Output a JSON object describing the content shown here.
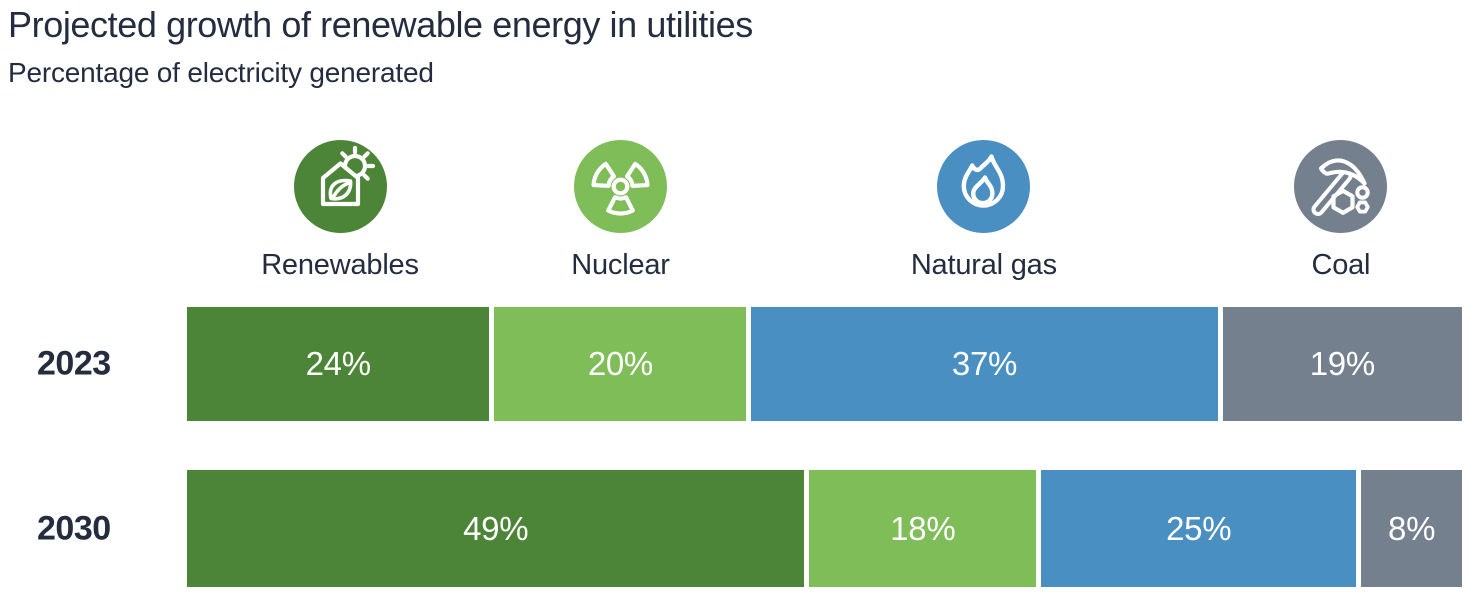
{
  "header": {
    "title": "Projected growth of renewable energy in utilities",
    "subtitle": "Percentage of electricity generated"
  },
  "legend": {
    "items": [
      {
        "label": "Renewables",
        "icon": "renewables-house-leaf-sun-icon",
        "color": "#4c8537"
      },
      {
        "label": "Nuclear",
        "icon": "nuclear-radiation-icon",
        "color": "#7fbd59"
      },
      {
        "label": "Natural gas",
        "icon": "natural-gas-flame-icon",
        "color": "#4a8fc2"
      },
      {
        "label": "Coal",
        "icon": "coal-pickaxe-icon",
        "color": "#75808f"
      }
    ]
  },
  "chart_data": {
    "type": "bar",
    "variant": "horizontal-stacked",
    "title": "Projected growth of renewable energy in utilities",
    "subtitle": "Percentage of electricity generated",
    "unit": "%",
    "categories": [
      "Renewables",
      "Nuclear",
      "Natural gas",
      "Coal"
    ],
    "series_colors": [
      "#4c8537",
      "#7fbd59",
      "#4a8fc2",
      "#75808f"
    ],
    "rows": [
      {
        "label": "2023",
        "values": [
          24,
          20,
          37,
          19
        ]
      },
      {
        "label": "2030",
        "values": [
          49,
          18,
          25,
          8
        ]
      }
    ],
    "value_label_color": "#ffffff",
    "text_color": "#232d3f",
    "xlim": [
      0,
      100
    ],
    "axis": "none",
    "grid": false,
    "legend_position": "top"
  }
}
